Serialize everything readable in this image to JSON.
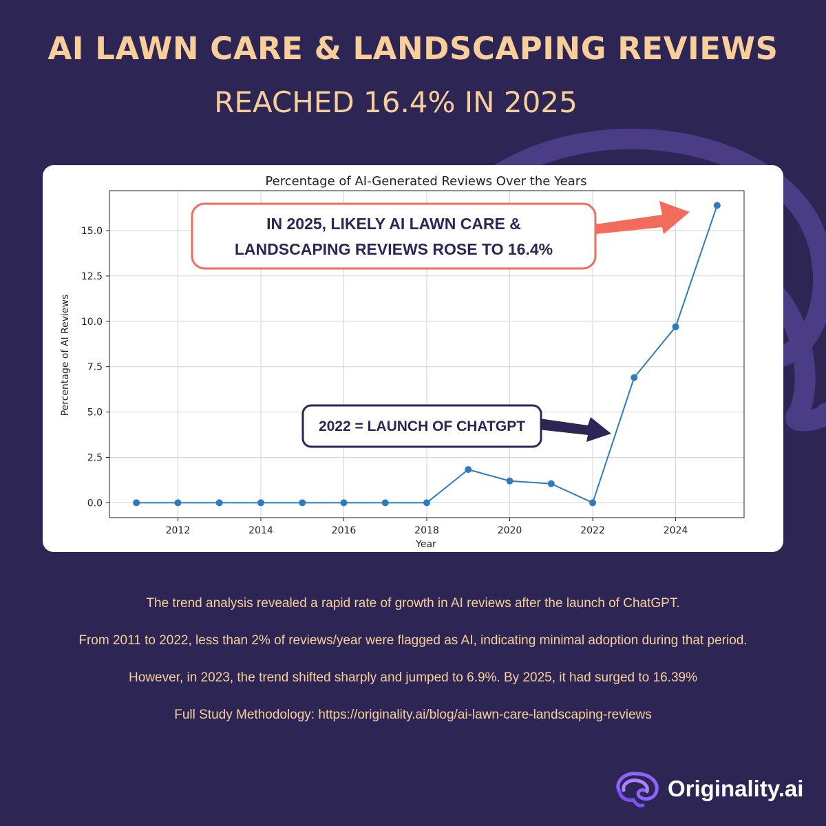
{
  "header": {
    "title": "AI LAWN CARE & LANDSCAPING REVIEWS",
    "subtitle": "REACHED 16.4% IN 2025"
  },
  "chart_data": {
    "type": "line",
    "title": "Percentage of AI-Generated Reviews Over the Years",
    "xlabel": "Year",
    "ylabel": "Percentage of AI Reviews",
    "x": [
      2011,
      2012,
      2013,
      2014,
      2015,
      2016,
      2017,
      2018,
      2019,
      2020,
      2021,
      2022,
      2023,
      2024,
      2025
    ],
    "values": [
      0,
      0,
      0,
      0,
      0,
      0,
      0,
      0,
      1.83,
      1.2,
      1.05,
      0,
      6.9,
      9.7,
      16.39
    ],
    "xticks": [
      "2012",
      "2014",
      "2016",
      "2018",
      "2020",
      "2022",
      "2024"
    ],
    "yticks": [
      "0.0",
      "2.5",
      "5.0",
      "7.5",
      "10.0",
      "12.5",
      "15.0"
    ],
    "xlim": [
      2010.35,
      2025.65
    ],
    "ylim": [
      -0.82,
      17.2
    ],
    "grid": true,
    "line_color": "#2d7bbd"
  },
  "annotations": {
    "top_callout": [
      "IN 2025, LIKELY AI LAWN CARE &",
      "LANDSCAPING REVIEWS ROSE TO 16.4%"
    ],
    "bottom_callout": "2022 = LAUNCH OF CHATGPT",
    "top_color": "#f26b5b",
    "bottom_color": "#2d2654"
  },
  "notes": [
    "The trend analysis revealed a rapid rate of growth in AI reviews after the launch of ChatGPT.",
    "From 2011 to 2022, less than 2% of reviews/year were flagged as AI, indicating minimal adoption during that period.",
    "However, in 2023, the trend shifted sharply and jumped to 6.9%. By 2025, it had surged to 16.39%",
    "Full Study Methodology: https://originality.ai/blog/ai-lawn-care-landscaping-reviews"
  ],
  "brand": {
    "name": "Originality.ai",
    "logo_icon": "brain-icon"
  },
  "colors": {
    "background": "#2d2654",
    "accent": "#f8cf9b"
  }
}
